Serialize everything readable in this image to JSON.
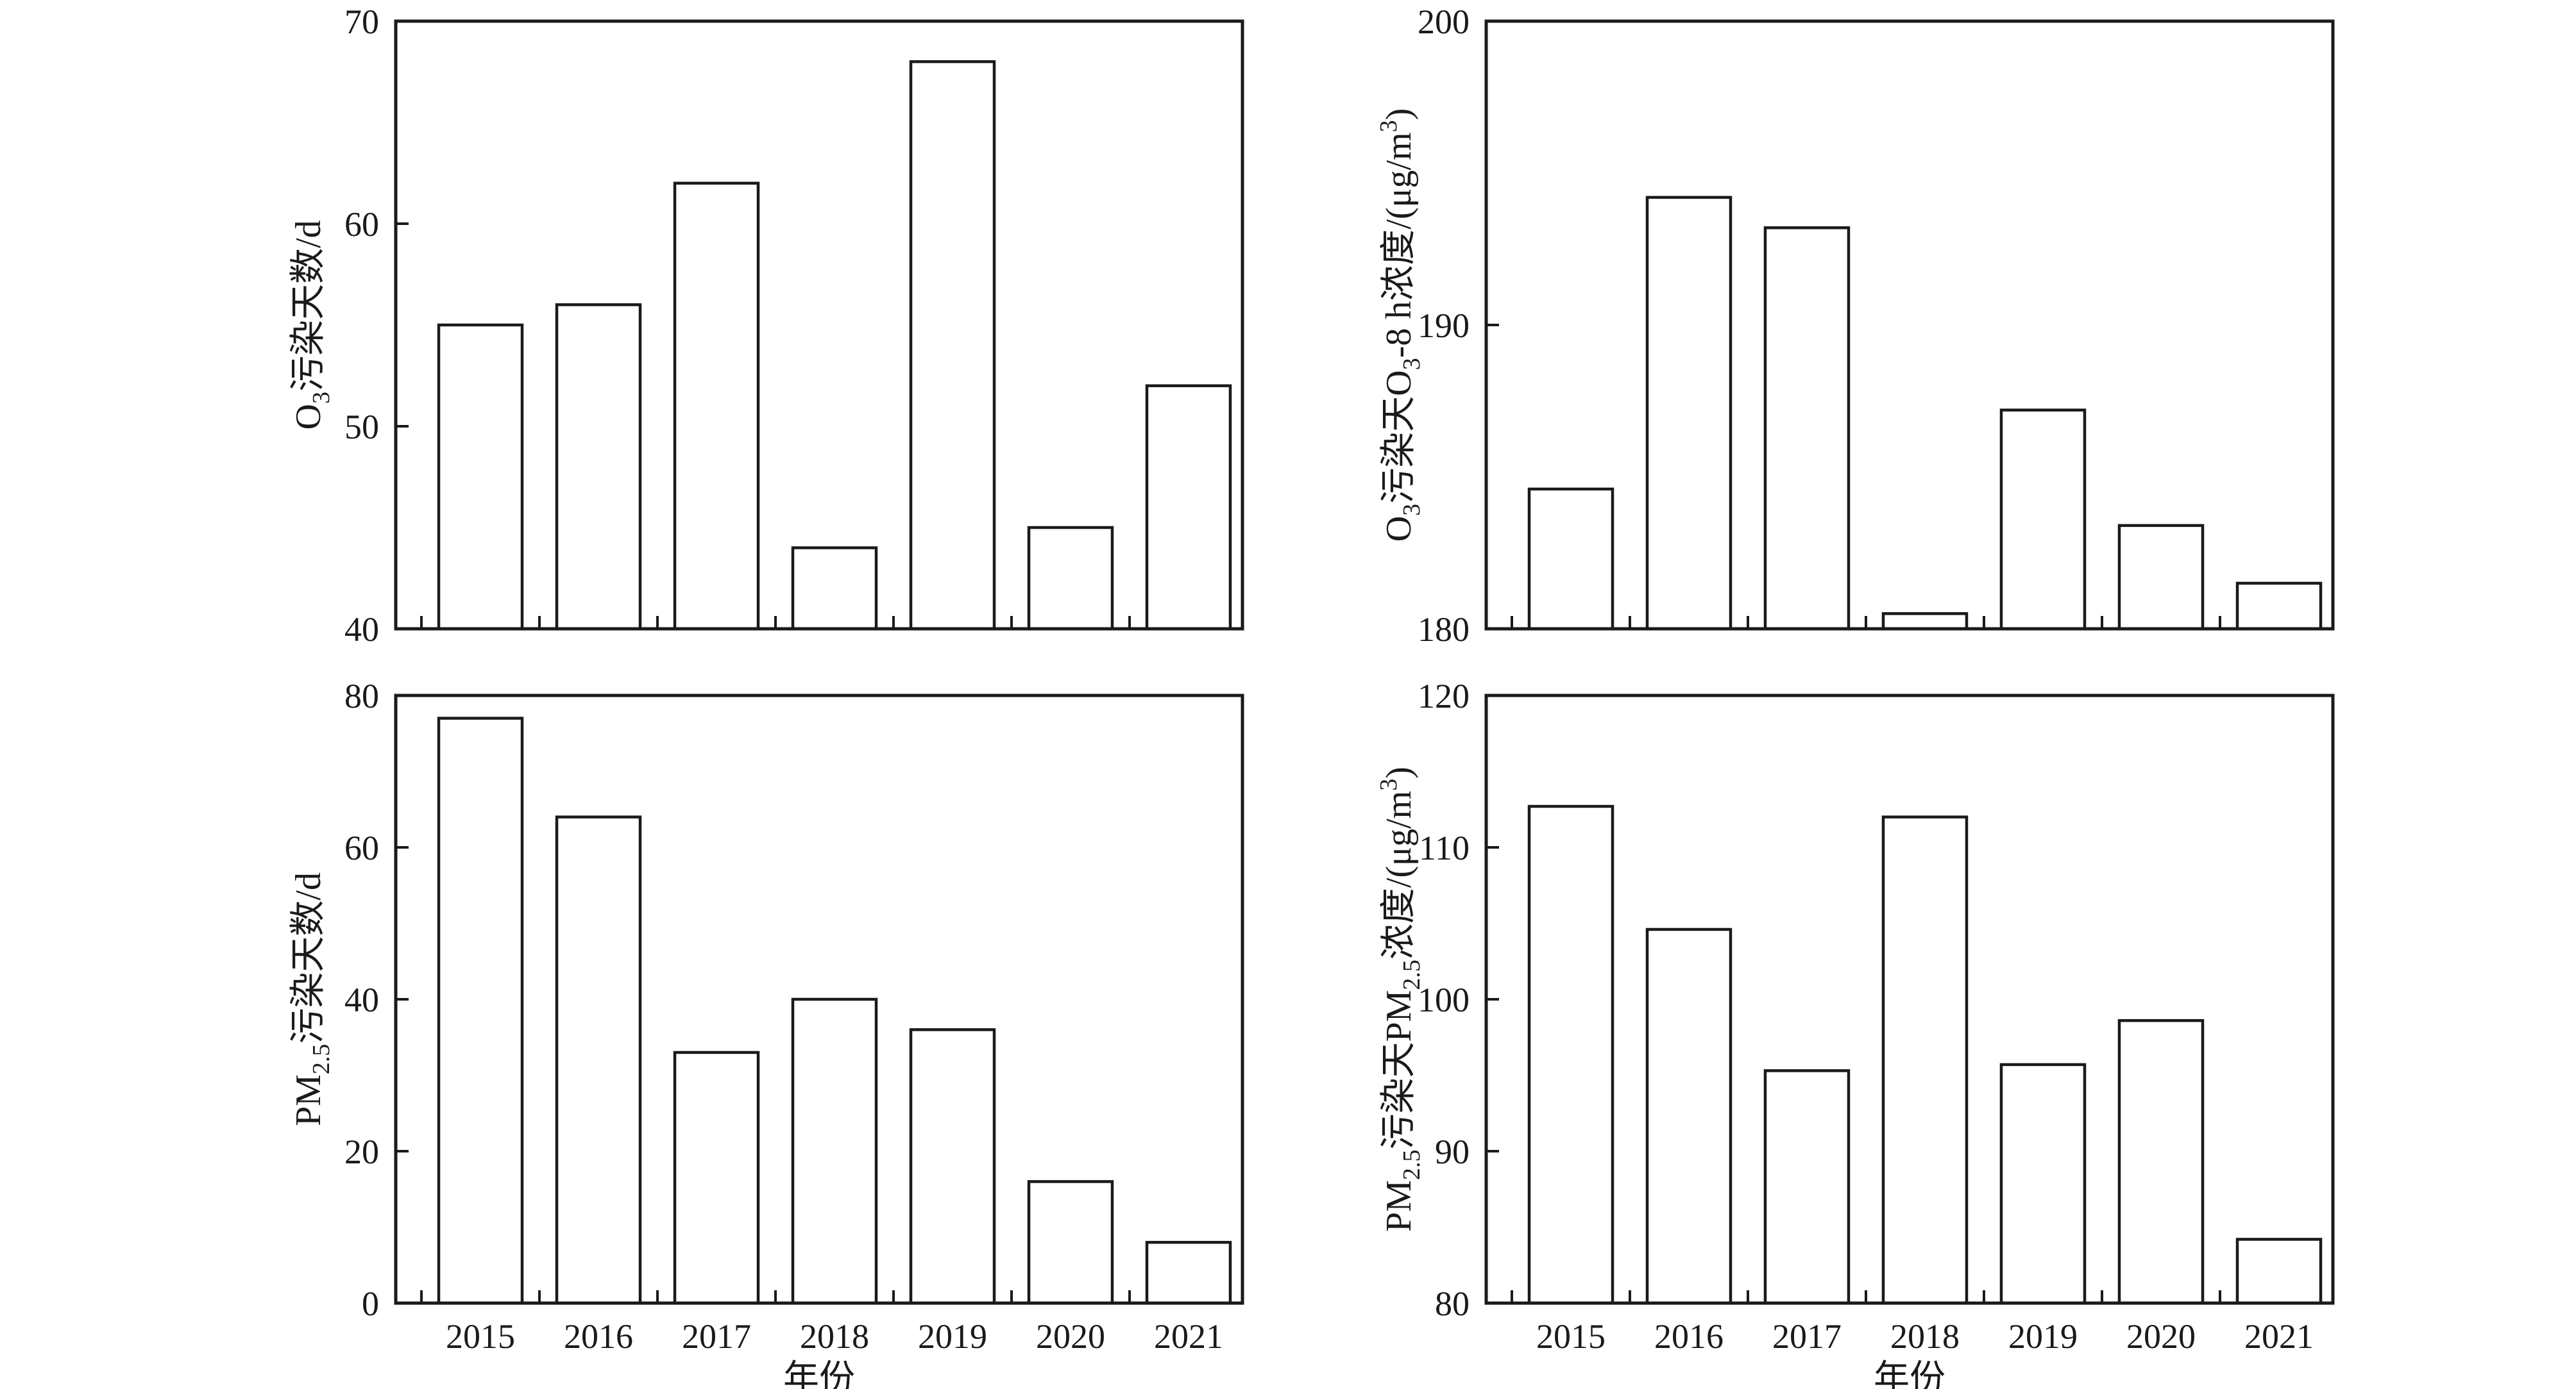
{
  "chart_data": [
    {
      "id": "tl",
      "type": "bar",
      "categories": [
        "2015",
        "2016",
        "2017",
        "2018",
        "2019",
        "2020",
        "2021"
      ],
      "values": [
        55,
        56,
        62,
        44,
        68,
        45,
        52
      ],
      "ylim": [
        40,
        70
      ],
      "yticks": [
        40,
        50,
        60,
        70
      ],
      "xlabel": "",
      "ylabel": "O3污染天数/d",
      "ylabel_parts": [
        {
          "t": "O"
        },
        {
          "t": "3",
          "sub": true
        },
        {
          "t": "污染天数/d"
        }
      ],
      "show_xticklabels": false,
      "grid": false
    },
    {
      "id": "tr",
      "type": "bar",
      "categories": [
        "2015",
        "2016",
        "2017",
        "2018",
        "2019",
        "2020",
        "2021"
      ],
      "values": [
        184.6,
        194.2,
        193.2,
        180.5,
        187.2,
        183.4,
        181.5
      ],
      "ylim": [
        180,
        200
      ],
      "yticks": [
        180,
        190,
        200
      ],
      "xlabel": "",
      "ylabel": "O3污染天O3-8 h浓度/(μg/m3)",
      "ylabel_parts": [
        {
          "t": "O"
        },
        {
          "t": "3",
          "sub": true
        },
        {
          "t": "污染天O"
        },
        {
          "t": "3",
          "sub": true
        },
        {
          "t": "-8 h浓度/(μg/m"
        },
        {
          "t": "3",
          "sup": true
        },
        {
          "t": ")"
        }
      ],
      "show_xticklabels": false,
      "grid": false
    },
    {
      "id": "bl",
      "type": "bar",
      "categories": [
        "2015",
        "2016",
        "2017",
        "2018",
        "2019",
        "2020",
        "2021"
      ],
      "values": [
        77,
        64,
        33,
        40,
        36,
        16,
        8
      ],
      "ylim": [
        0,
        80
      ],
      "yticks": [
        0,
        20,
        40,
        60,
        80
      ],
      "xlabel": "年份",
      "ylabel": "PM2.5污染天数/d",
      "ylabel_parts": [
        {
          "t": "PM"
        },
        {
          "t": "2.5",
          "sub": true
        },
        {
          "t": "污染天数/d"
        }
      ],
      "show_xticklabels": true,
      "grid": false
    },
    {
      "id": "br",
      "type": "bar",
      "categories": [
        "2015",
        "2016",
        "2017",
        "2018",
        "2019",
        "2020",
        "2021"
      ],
      "values": [
        112.7,
        104.6,
        95.3,
        112.0,
        95.7,
        98.6,
        84.2
      ],
      "ylim": [
        80,
        120
      ],
      "yticks": [
        80,
        90,
        100,
        110,
        120
      ],
      "xlabel": "年份",
      "ylabel": "PM2.5污染天PM2.5浓度/(μg/m3)",
      "ylabel_parts": [
        {
          "t": "PM"
        },
        {
          "t": "2.5",
          "sub": true
        },
        {
          "t": "污染天PM"
        },
        {
          "t": "2.5",
          "sub": true
        },
        {
          "t": "浓度/(μg/m"
        },
        {
          "t": "3",
          "sup": true
        },
        {
          "t": ")"
        }
      ],
      "show_xticklabels": true,
      "grid": false
    }
  ]
}
